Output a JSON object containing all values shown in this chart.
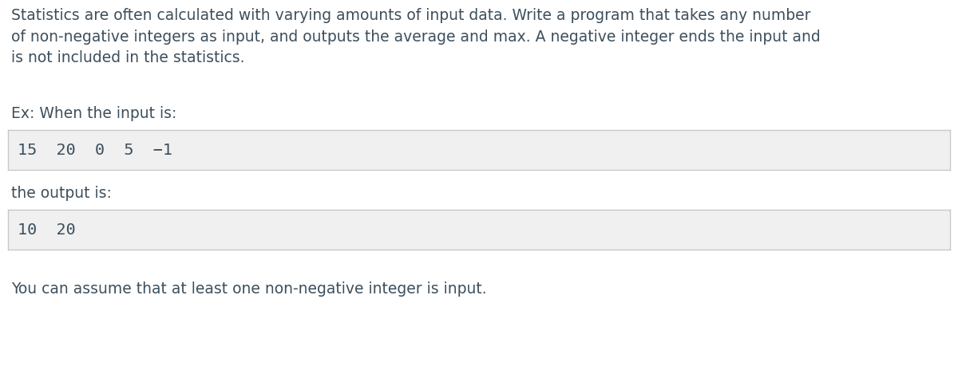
{
  "bg_color": "#ffffff",
  "text_color": "#3d4f5c",
  "paragraph_text": "Statistics are often calculated with varying amounts of input data. Write a program that takes any number\nof non-negative integers as input, and outputs the average and max. A negative integer ends the input and\nis not included in the statistics.",
  "ex_label": "Ex: When the input is:",
  "input_box_text": "15  20  0  5  −1",
  "output_label": "the output is:",
  "output_box_text": "10  20",
  "footer_text": "You can assume that at least one non-negative integer is input.",
  "box_bg_color": "#f0f0f0",
  "box_border_color": "#c8c8c8",
  "font_size_paragraph": 13.5,
  "font_size_label": 13.5,
  "font_size_code": 14.5,
  "font_size_footer": 13.5,
  "fig_width": 12.0,
  "fig_height": 4.59,
  "dpi": 100
}
